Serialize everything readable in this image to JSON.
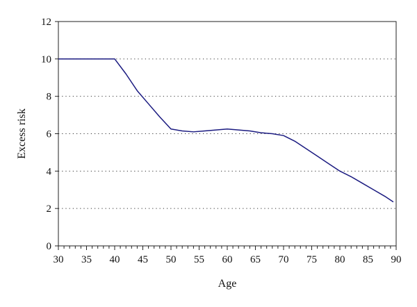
{
  "chart_data": {
    "type": "line",
    "title": "",
    "xlabel": "Age",
    "ylabel": "Excess risk",
    "xlim": [
      30,
      90
    ],
    "ylim": [
      0,
      12
    ],
    "x_ticks": [
      30,
      35,
      40,
      45,
      50,
      55,
      60,
      65,
      70,
      75,
      80,
      85,
      90
    ],
    "x_tick_labels": [
      "30",
      "35",
      "40",
      "45",
      "50",
      "55",
      "60",
      "65",
      "70",
      "75",
      "80",
      "85",
      "90"
    ],
    "y_ticks": [
      0,
      2,
      4,
      6,
      8,
      10,
      12
    ],
    "y_tick_labels": [
      "0",
      "2",
      "4",
      "6",
      "8",
      "10",
      "12"
    ],
    "grid": "horizontal dotted",
    "legend": "none",
    "series": [
      {
        "color": "#1a1a80",
        "x": [
          30,
          32,
          34,
          36,
          38,
          40,
          42,
          44,
          46,
          48,
          50,
          52,
          54,
          56,
          58,
          60,
          62,
          64,
          66,
          68,
          70,
          72,
          74,
          76,
          78,
          80,
          82,
          84,
          86,
          88,
          89.5
        ],
        "y": [
          10,
          10,
          10,
          10,
          10,
          10,
          9.2,
          8.3,
          7.6,
          6.9,
          6.25,
          6.15,
          6.1,
          6.15,
          6.2,
          6.25,
          6.2,
          6.15,
          6.05,
          6.0,
          5.9,
          5.6,
          5.2,
          4.8,
          4.4,
          4.0,
          3.7,
          3.35,
          3.0,
          2.65,
          2.35
        ]
      }
    ]
  }
}
